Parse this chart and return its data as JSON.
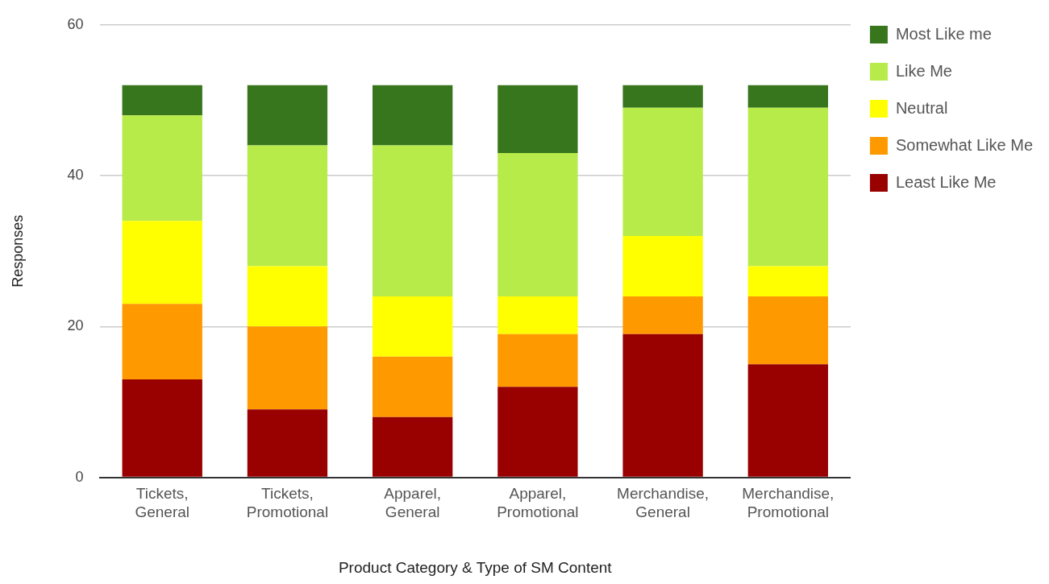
{
  "chart_data": {
    "type": "bar",
    "stacked": true,
    "xlabel": "Product Category & Type of SM Content",
    "ylabel": "Responses",
    "categories": [
      "Tickets, General",
      "Tickets, Promotional",
      "Apparel, General",
      "Apparel, Promotional",
      "Merchandise, General",
      "Merchandise, Promotional"
    ],
    "series": [
      {
        "name": "Least Like Me",
        "color": "#990000",
        "values": [
          13,
          9,
          8,
          12,
          19,
          15
        ]
      },
      {
        "name": "Somewhat Like Me",
        "color": "#ff9900",
        "values": [
          10,
          11,
          8,
          7,
          5,
          9
        ]
      },
      {
        "name": "Neutral",
        "color": "#ffff00",
        "values": [
          11,
          8,
          8,
          5,
          8,
          4
        ]
      },
      {
        "name": "Like Me",
        "color": "#b7eb4a",
        "values": [
          14,
          16,
          20,
          19,
          17,
          21
        ]
      },
      {
        "name": "Most Like me",
        "color": "#38761d",
        "values": [
          4,
          8,
          8,
          9,
          3,
          3
        ]
      }
    ],
    "ylim": [
      0,
      60
    ],
    "yticks": [
      0,
      20,
      40,
      60
    ],
    "grid": "y",
    "legend": "top right"
  }
}
